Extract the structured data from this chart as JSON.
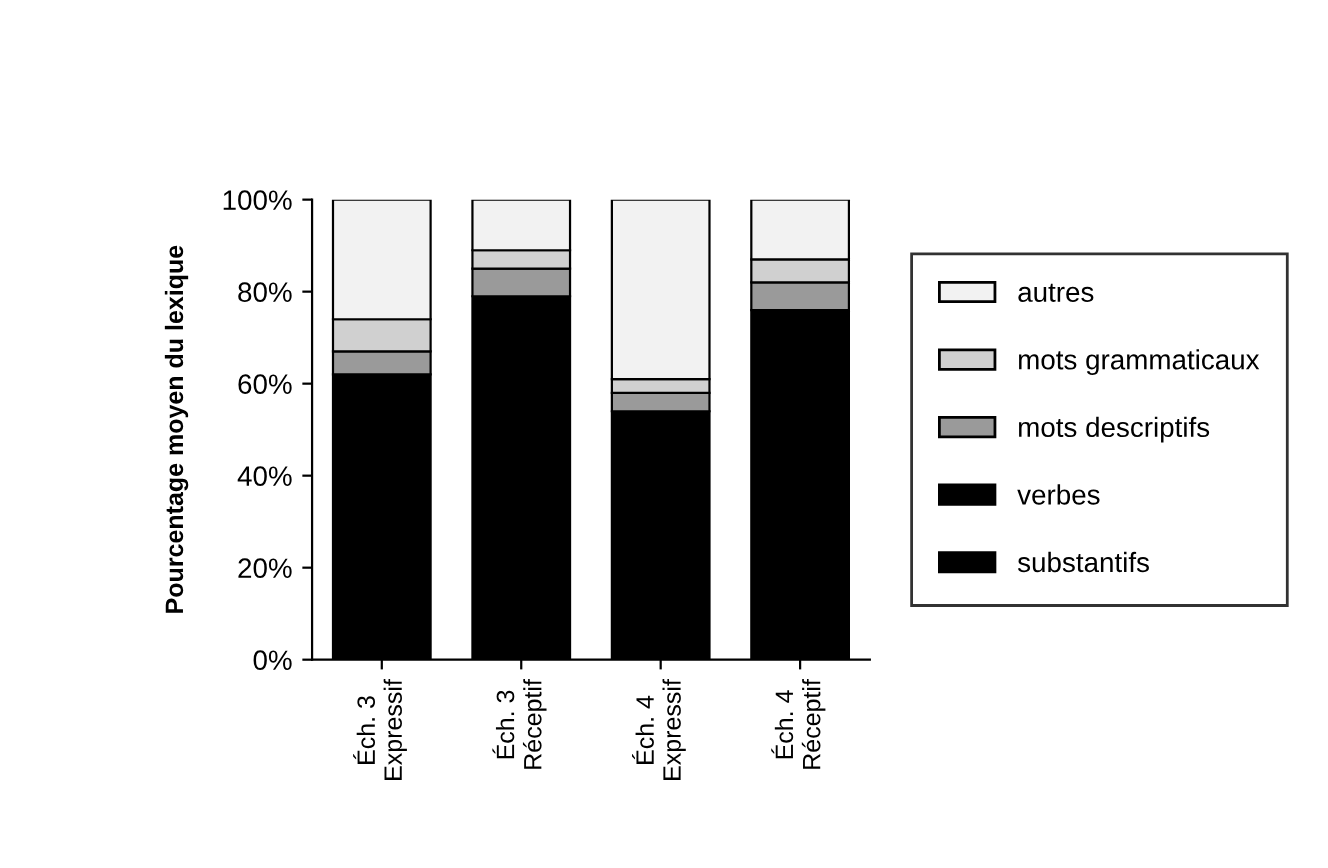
{
  "chart_data": {
    "type": "bar",
    "stacked": true,
    "ylabel": "Pourcentage moyen du lexique",
    "categories": [
      "Éch. 3\nExpressif",
      "Éch. 3\nRéceptif",
      "Éch. 4\nExpressif",
      "Éch. 4\nRéceptif"
    ],
    "series": [
      {
        "name": "substantifs",
        "color": "#000000",
        "values": [
          62,
          79,
          54,
          76
        ]
      },
      {
        "name": "verbes",
        "color": "#000000",
        "values": [
          null,
          null,
          null,
          null
        ]
      },
      {
        "name": "mots descriptifs",
        "color": "#9a9a9a",
        "values": [
          5,
          6,
          4,
          6
        ]
      },
      {
        "name": "mots grammaticaux",
        "color": "#d0d0d0",
        "values": [
          7,
          4,
          3,
          5
        ]
      },
      {
        "name": "autres",
        "color": "#f2f2f2",
        "values": [
          26,
          11,
          39,
          13
        ]
      }
    ],
    "ylim": [
      0,
      100
    ],
    "yticks": [
      {
        "value": 0,
        "label": "0%"
      },
      {
        "value": 20,
        "label": "20%"
      },
      {
        "value": 40,
        "label": "40%"
      },
      {
        "value": 60,
        "label": "60%"
      },
      {
        "value": 80,
        "label": "80%"
      },
      {
        "value": 100,
        "label": "100%"
      }
    ],
    "grid": false,
    "legend": "right"
  }
}
